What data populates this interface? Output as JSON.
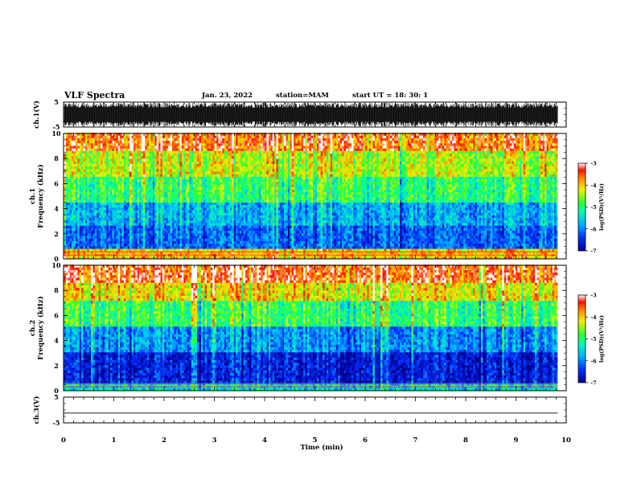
{
  "header": {
    "title": "VLF Spectra",
    "date": "Jan. 23, 2022",
    "station": "station=MAM",
    "start": "start  UT =   18: 30: 1"
  },
  "chart_data": [
    {
      "id": "ch1-waveform",
      "type": "line",
      "ylabel": "ch.1(V)",
      "ylim": [
        -5,
        5
      ],
      "y_ticks": [
        "5",
        "-5"
      ],
      "xlim": [
        0,
        10
      ],
      "data_extent_min": [
        0,
        9.83
      ],
      "description_values": {
        "min_amplitude": -5,
        "max_amplitude": 5
      }
    },
    {
      "id": "ch1-spectrogram",
      "type": "heatmap",
      "ylabel": "ch.1\nFrequency (kHz)",
      "ylim": [
        0,
        10
      ],
      "y_ticks": [
        "0",
        "2",
        "4",
        "6",
        "8",
        "10"
      ],
      "xlim": [
        0,
        10
      ],
      "data_extent_min": [
        0,
        9.83
      ],
      "colorbar": {
        "label": "log(PSD)(V²/Hz)",
        "ticks": [
          "-3",
          "-4",
          "-5",
          "-6",
          "-7"
        ],
        "range": [
          -7,
          -3
        ]
      },
      "bands_khz": [
        {
          "from": 0,
          "to": 0.8,
          "log_psd": -4.0
        },
        {
          "from": 0.8,
          "to": 2.5,
          "log_psd": -6.2
        },
        {
          "from": 2.5,
          "to": 4.5,
          "log_psd": -5.8
        },
        {
          "from": 4.5,
          "to": 6.5,
          "log_psd": -5.0
        },
        {
          "from": 6.5,
          "to": 8.5,
          "log_psd": -4.4
        },
        {
          "from": 8.5,
          "to": 10,
          "log_psd": -3.6
        }
      ]
    },
    {
      "id": "ch2-spectrogram",
      "type": "heatmap",
      "ylabel": "ch.2\nFrequency (kHz)",
      "ylim": [
        0,
        10
      ],
      "y_ticks": [
        "0",
        "2",
        "4",
        "6",
        "8",
        "10"
      ],
      "xlim": [
        0,
        10
      ],
      "data_extent_min": [
        0,
        9.83
      ],
      "colorbar": {
        "label": "log(PSD)(V²/Hz)",
        "ticks": [
          "-3",
          "-4",
          "-5",
          "-6",
          "-7"
        ],
        "range": [
          -7,
          -3
        ]
      },
      "bands_khz": [
        {
          "from": 0,
          "to": 0.5,
          "log_psd": -5.5
        },
        {
          "from": 0.5,
          "to": 3.0,
          "log_psd": -6.6
        },
        {
          "from": 3.0,
          "to": 5.0,
          "log_psd": -5.9
        },
        {
          "from": 5.0,
          "to": 7.0,
          "log_psd": -4.9
        },
        {
          "from": 7.0,
          "to": 8.5,
          "log_psd": -4.1
        },
        {
          "from": 8.5,
          "to": 10,
          "log_psd": -3.4
        }
      ]
    },
    {
      "id": "ch3-waveform",
      "type": "line",
      "ylabel": "ch.3(V)",
      "ylim": [
        -5,
        5
      ],
      "y_ticks": [
        "5",
        "-5"
      ],
      "xlim": [
        0,
        10
      ],
      "x": [
        0,
        9.83
      ],
      "y": [
        -1.2,
        -1.2
      ],
      "xlabel": "Time (min)",
      "x_ticks": [
        "0",
        "1",
        "2",
        "3",
        "4",
        "5",
        "6",
        "7",
        "8",
        "9",
        "10"
      ]
    }
  ]
}
